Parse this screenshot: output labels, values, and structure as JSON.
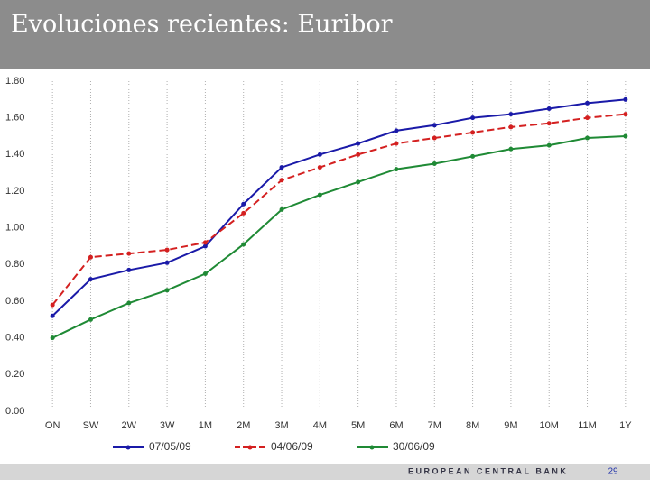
{
  "chart_data": {
    "type": "line",
    "title": "Evoluciones recientes: Euribor",
    "categories": [
      "ON",
      "SW",
      "2W",
      "3W",
      "1M",
      "2M",
      "3M",
      "4M",
      "5M",
      "6M",
      "7M",
      "8M",
      "9M",
      "10M",
      "11M",
      "1Y"
    ],
    "series": [
      {
        "name": "07/05/09",
        "color": "#1a1aa8",
        "dash": false,
        "values": [
          0.52,
          0.72,
          0.77,
          0.81,
          0.9,
          1.13,
          1.33,
          1.4,
          1.46,
          1.53,
          1.56,
          1.6,
          1.62,
          1.65,
          1.68,
          1.7
        ]
      },
      {
        "name": "04/06/09",
        "color": "#d42020",
        "dash": true,
        "values": [
          0.58,
          0.84,
          0.86,
          0.88,
          0.92,
          1.08,
          1.26,
          1.33,
          1.4,
          1.46,
          1.49,
          1.52,
          1.55,
          1.57,
          1.6,
          1.62
        ]
      },
      {
        "name": "30/06/09",
        "color": "#1f8a35",
        "dash": false,
        "values": [
          0.4,
          0.5,
          0.59,
          0.66,
          0.75,
          0.91,
          1.1,
          1.18,
          1.25,
          1.32,
          1.35,
          1.39,
          1.43,
          1.45,
          1.49,
          1.5
        ]
      }
    ],
    "ylim": [
      0,
      1.8
    ],
    "yticks": [
      {
        "value": 0,
        "label": "0.00"
      },
      {
        "value": 0.2,
        "label": "0.20"
      },
      {
        "value": 0.4,
        "label": "0.40"
      },
      {
        "value": 0.6,
        "label": "0.60"
      },
      {
        "value": 0.8,
        "label": "0.80"
      },
      {
        "value": 1,
        "label": "1.00"
      },
      {
        "value": 1.2,
        "label": "1.20"
      },
      {
        "value": 1.4,
        "label": "1.40"
      },
      {
        "value": 1.6,
        "label": "1.60"
      },
      {
        "value": 1.8,
        "label": "1.80"
      }
    ],
    "grid": true
  },
  "footer": {
    "organization": "EUROPEAN CENTRAL BANK",
    "page_number": "29"
  }
}
